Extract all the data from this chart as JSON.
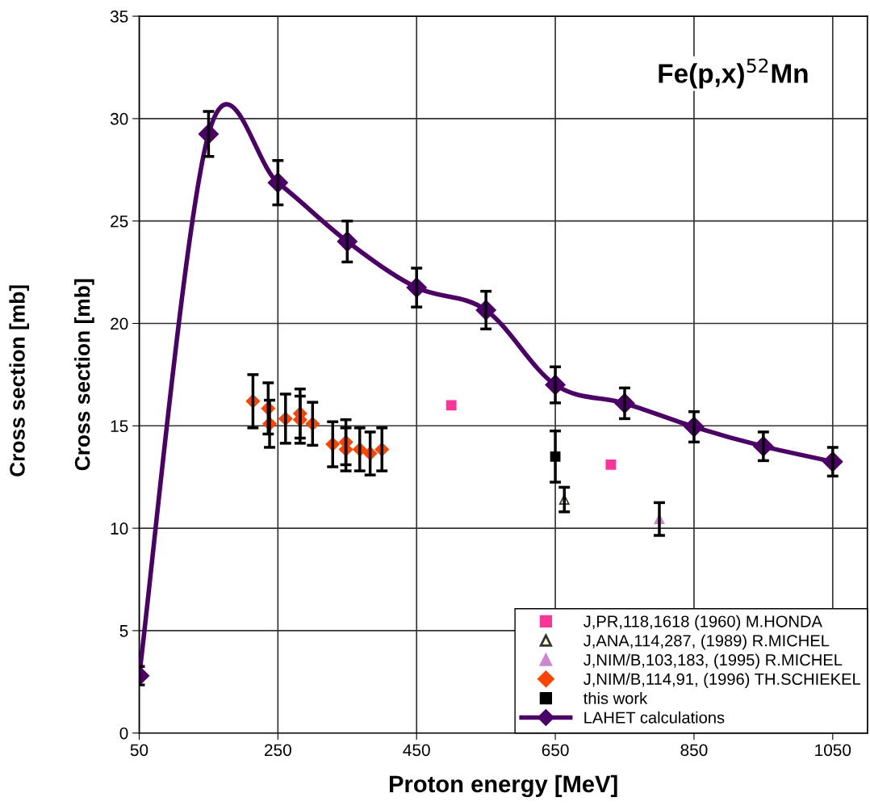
{
  "chart_data": {
    "type": "scatter",
    "title": "Fe(p,x)$^{52}$Mn",
    "xlabel": "Proton energy [MeV]",
    "ylabel": "Cross section [mb]",
    "annotations": [
      "Cross section [mb]"
    ],
    "xlim": [
      50,
      1100
    ],
    "xticks": [
      50,
      250,
      450,
      650,
      850,
      1050
    ],
    "ylim": [
      0,
      35
    ],
    "yticks": [
      0,
      5,
      10,
      15,
      20,
      25,
      30,
      35
    ],
    "grid": true,
    "legend": "bottom right",
    "series": [
      {
        "name": "J,PR,118,1618 (1960) M.HONDA",
        "marker": "square",
        "color": "#ff3399",
        "x": [
          500,
          730
        ],
        "values": [
          16.0,
          13.1
        ]
      },
      {
        "name": "J,ANA,114,287, (1989) R.MICHEL",
        "marker": "triangle",
        "color": "#ffffcc",
        "x": [
          663
        ],
        "values": [
          11.4
        ],
        "errors": [
          0.6
        ]
      },
      {
        "name": "J,NIM/B,103,183, (1995) R.MICHEL",
        "marker": "triangle",
        "color": "#cc88cc",
        "x": [
          800
        ],
        "values": [
          10.45
        ],
        "errors": [
          0.8
        ]
      },
      {
        "name": "J,NIM/B,114,91, (1996) TH.SCHIEKEL",
        "marker": "diamond",
        "color": "#ff4400",
        "x": [
          214,
          236,
          238,
          261,
          282,
          282,
          300,
          329,
          348,
          348,
          368,
          383,
          400
        ],
        "values": [
          16.2,
          15.85,
          15.1,
          15.35,
          15.6,
          15.3,
          15.1,
          14.1,
          14.2,
          13.85,
          13.85,
          13.65,
          13.85
        ],
        "errors": [
          1.3,
          1.25,
          1.15,
          1.2,
          1.2,
          1.15,
          1.05,
          1.1,
          1.1,
          1.05,
          1.05,
          1.05,
          1.05
        ]
      },
      {
        "name": "this work",
        "marker": "square",
        "color": "#000000",
        "x": [
          650
        ],
        "values": [
          13.5
        ],
        "errors": [
          1.25
        ]
      },
      {
        "name": "LAHET calculations",
        "type": "line",
        "marker": "diamond",
        "color": "#4b0066",
        "x": [
          50,
          150,
          250,
          350,
          450,
          550,
          650,
          750,
          850,
          950,
          1050
        ],
        "values": [
          2.8,
          29.25,
          26.87,
          24.0,
          21.75,
          20.65,
          17.0,
          16.1,
          14.95,
          14.0,
          13.25
        ],
        "errors": [
          0.45,
          1.1,
          1.08,
          1.0,
          0.95,
          0.92,
          0.88,
          0.75,
          0.74,
          0.7,
          0.7
        ]
      }
    ]
  }
}
